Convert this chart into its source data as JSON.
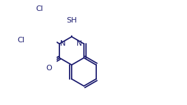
{
  "background_color": "#ffffff",
  "line_color": "#1a1a6e",
  "text_color": "#1a1a6e",
  "label_SH": "SH",
  "label_N1": "N",
  "label_N2": "N",
  "label_O": "O",
  "label_Cl1": "Cl",
  "label_Cl2": "Cl",
  "figsize": [
    2.74,
    1.54
  ],
  "dpi": 100
}
